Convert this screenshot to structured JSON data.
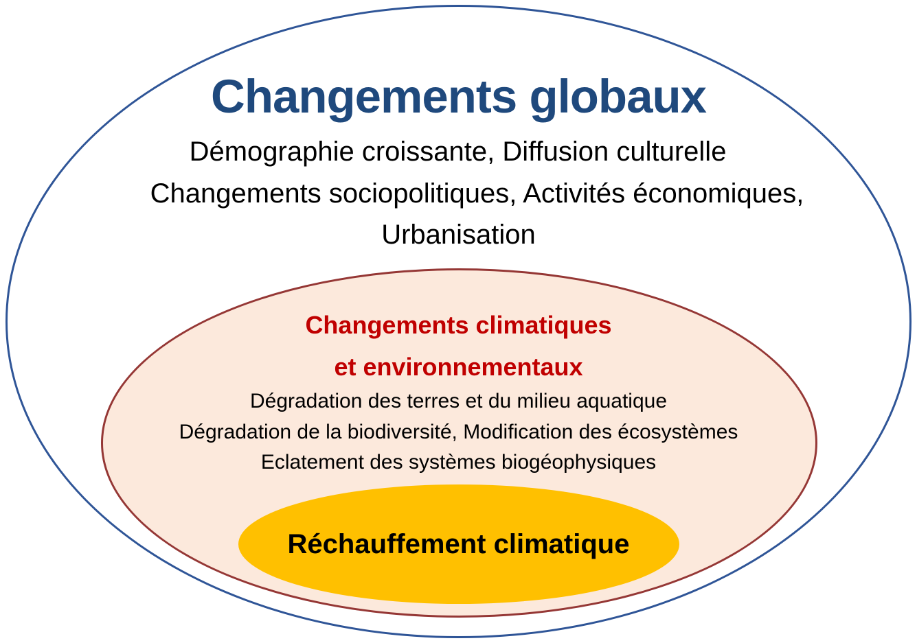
{
  "diagram": {
    "outer": {
      "title": "Changements globaux",
      "lines": [
        "Démographie croissante, Diffusion culturelle",
        "Changements sociopolitiques, Activités économiques,",
        "Urbanisation"
      ],
      "border_color": "#2f5597",
      "title_color": "#1f497d"
    },
    "middle": {
      "title_lines": [
        "Changements climatiques",
        "et environnementaux"
      ],
      "lines": [
        "Dégradation des terres et du milieu aquatique",
        "Dégradation de la biodiversité, Modification des écosystèmes",
        "Eclatement des systèmes biogéophysiques"
      ],
      "border_color": "#953735",
      "fill_color": "#fce9dc",
      "title_color": "#c00000"
    },
    "inner": {
      "title": "Réchauffement climatique",
      "fill_color": "#ffc000"
    }
  }
}
